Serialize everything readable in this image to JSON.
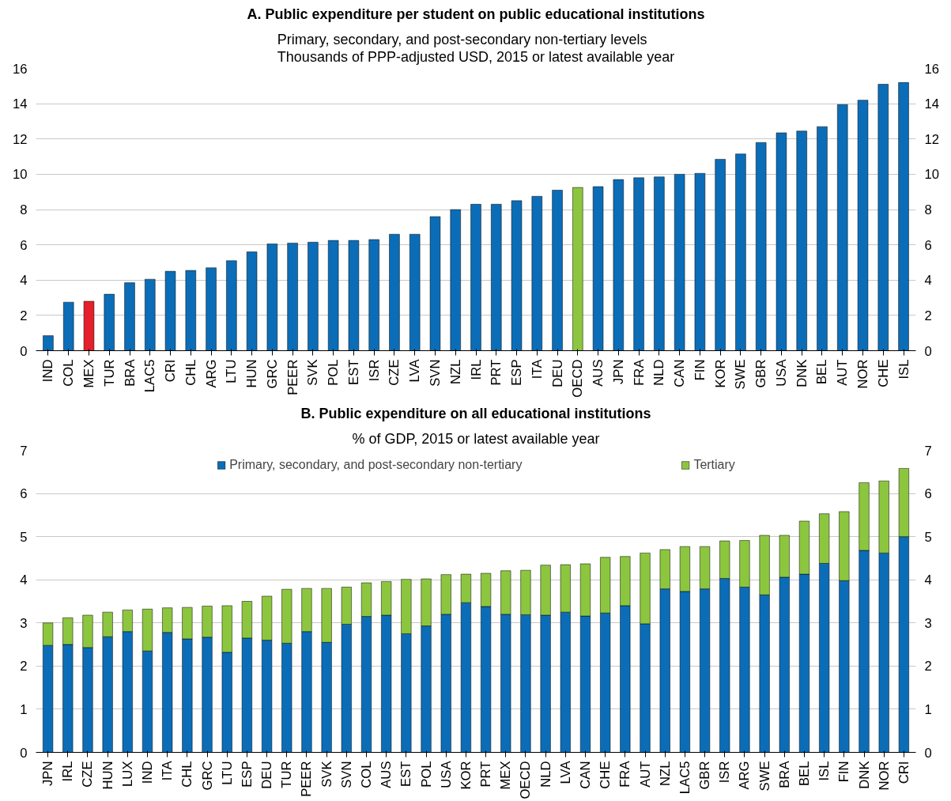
{
  "chart_data": [
    {
      "type": "bar",
      "title": "A. Public expenditure per student on public educational institutions",
      "subtitle": "Primary, secondary, and post-secondary non-tertiary levels\nThousands of PPP-adjusted USD, 2015 or latest available year",
      "categories": [
        "IND",
        "COL",
        "MEX",
        "TUR",
        "BRA",
        "LAC5",
        "CRI",
        "CHL",
        "ARG",
        "LTU",
        "HUN",
        "GRC",
        "PEER",
        "SVK",
        "POL",
        "EST",
        "ISR",
        "CZE",
        "LVA",
        "SVN",
        "NZL",
        "IRL",
        "PRT",
        "ESP",
        "ITA",
        "DEU",
        "OECD",
        "AUS",
        "JPN",
        "FRA",
        "NLD",
        "CAN",
        "FIN",
        "KOR",
        "SWE",
        "GBR",
        "USA",
        "DNK",
        "BEL",
        "AUT",
        "NOR",
        "CHE",
        "ISL"
      ],
      "values": [
        0.85,
        2.75,
        2.8,
        3.2,
        3.85,
        4.05,
        4.5,
        4.55,
        4.7,
        5.1,
        5.6,
        6.05,
        6.1,
        6.15,
        6.25,
        6.25,
        6.3,
        6.6,
        6.6,
        7.6,
        8.0,
        8.3,
        8.3,
        8.5,
        8.75,
        9.1,
        9.25,
        9.3,
        9.7,
        9.8,
        9.85,
        10.0,
        10.05,
        10.85,
        11.15,
        11.8,
        12.35,
        12.45,
        12.7,
        13.95,
        14.2,
        15.1,
        15.2
      ],
      "colors": [
        "#0b6db7",
        "#0b6db7",
        "#e3202b",
        "#0b6db7",
        "#0b6db7",
        "#0b6db7",
        "#0b6db7",
        "#0b6db7",
        "#0b6db7",
        "#0b6db7",
        "#0b6db7",
        "#0b6db7",
        "#0b6db7",
        "#0b6db7",
        "#0b6db7",
        "#0b6db7",
        "#0b6db7",
        "#0b6db7",
        "#0b6db7",
        "#0b6db7",
        "#0b6db7",
        "#0b6db7",
        "#0b6db7",
        "#0b6db7",
        "#0b6db7",
        "#0b6db7",
        "#8cc63f",
        "#0b6db7",
        "#0b6db7",
        "#0b6db7",
        "#0b6db7",
        "#0b6db7",
        "#0b6db7",
        "#0b6db7",
        "#0b6db7",
        "#0b6db7",
        "#0b6db7",
        "#0b6db7",
        "#0b6db7",
        "#0b6db7",
        "#0b6db7",
        "#0b6db7",
        "#0b6db7"
      ],
      "ylim": [
        0,
        16
      ],
      "yticks": [
        0,
        2,
        4,
        6,
        8,
        10,
        12,
        14,
        16
      ],
      "y2lim": [
        0,
        16
      ],
      "y2ticks": [
        0,
        2,
        4,
        6,
        8,
        10,
        12,
        14,
        16
      ],
      "grid": "y"
    },
    {
      "type": "bar",
      "title": "B. Public expenditure on all educational institutions",
      "subtitle": "% of GDP, 2015 or latest available year",
      "categories": [
        "JPN",
        "IRL",
        "CZE",
        "HUN",
        "LUX",
        "IND",
        "ITA",
        "CHL",
        "GRC",
        "LTU",
        "ESP",
        "DEU",
        "TUR",
        "PEER",
        "SVK",
        "SVN",
        "COL",
        "AUS",
        "EST",
        "POL",
        "USA",
        "KOR",
        "PRT",
        "MEX",
        "OECD",
        "NLD",
        "LVA",
        "CAN",
        "CHE",
        "FRA",
        "AUT",
        "NZL",
        "LAC5",
        "GBR",
        "ISR",
        "ARG",
        "SWE",
        "BRA",
        "BEL",
        "ISL",
        "FIN",
        "DNK",
        "NOR",
        "CRI"
      ],
      "stacked": true,
      "legend": "top",
      "series": [
        {
          "name": "Primary, secondary, and post-secondary non-tertiary",
          "color": "#0b6db7",
          "values": [
            2.48,
            2.5,
            2.43,
            2.68,
            2.8,
            2.35,
            2.78,
            2.63,
            2.67,
            2.32,
            2.65,
            2.6,
            2.53,
            2.8,
            2.55,
            2.97,
            3.15,
            3.18,
            2.75,
            2.93,
            3.2,
            3.47,
            3.38,
            3.2,
            3.19,
            3.18,
            3.25,
            3.16,
            3.23,
            3.4,
            2.98,
            3.79,
            3.73,
            3.79,
            4.03,
            3.83,
            3.65,
            4.06,
            4.13,
            4.38,
            3.98,
            4.68,
            4.62,
            5.0
          ]
        },
        {
          "name": "Tertiary",
          "color": "#8cc63f",
          "values": [
            0.52,
            0.62,
            0.75,
            0.57,
            0.5,
            0.97,
            0.57,
            0.73,
            0.72,
            1.08,
            0.85,
            1.02,
            1.25,
            1.0,
            1.25,
            0.86,
            0.78,
            0.78,
            1.26,
            1.09,
            0.92,
            0.66,
            0.77,
            1.01,
            1.03,
            1.16,
            1.1,
            1.21,
            1.29,
            1.14,
            1.64,
            0.91,
            1.04,
            0.98,
            0.87,
            1.08,
            1.38,
            0.97,
            1.23,
            1.15,
            1.6,
            1.57,
            1.67,
            1.58
          ]
        }
      ],
      "ylim": [
        0,
        7
      ],
      "yticks": [
        0,
        1,
        2,
        3,
        4,
        5,
        6,
        7
      ],
      "y2lim": [
        0,
        7
      ],
      "y2ticks": [
        0,
        1,
        2,
        3,
        4,
        5,
        6,
        7
      ],
      "grid": "y"
    }
  ]
}
